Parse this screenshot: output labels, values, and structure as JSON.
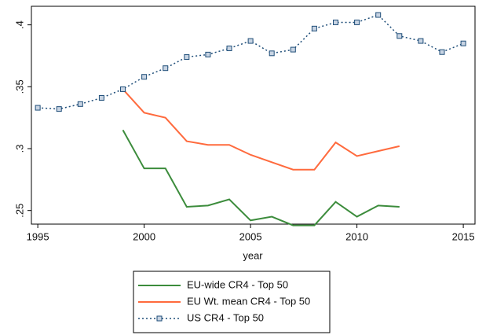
{
  "chart_data": {
    "type": "line",
    "x_label": "year",
    "x": [
      1995,
      1996,
      1997,
      1998,
      1999,
      2000,
      2001,
      2002,
      2003,
      2004,
      2005,
      2006,
      2007,
      2008,
      2009,
      2010,
      2011,
      2012,
      2013,
      2014,
      2015
    ],
    "series": [
      {
        "name": "EU-wide CR4 - Top 50",
        "color": "#3c8c3c",
        "style": "solid",
        "markers": false,
        "values": [
          null,
          null,
          null,
          null,
          0.315,
          0.284,
          0.284,
          0.253,
          0.254,
          0.259,
          0.242,
          0.245,
          0.238,
          0.238,
          0.257,
          0.245,
          0.254,
          0.253,
          null,
          null,
          null
        ]
      },
      {
        "name": "EU Wt. mean  CR4 - Top 50",
        "color": "#ff6a3d",
        "style": "solid",
        "markers": false,
        "values": [
          null,
          null,
          null,
          null,
          0.348,
          0.329,
          0.325,
          0.306,
          0.303,
          0.303,
          0.295,
          0.289,
          0.283,
          0.283,
          0.305,
          0.294,
          0.298,
          0.302,
          null,
          null,
          null
        ]
      },
      {
        "name": "US CR4 - Top 50",
        "color": "#1f4e79",
        "style": "dotted",
        "markers": true,
        "values": [
          0.333,
          0.332,
          0.336,
          0.341,
          0.348,
          0.358,
          0.365,
          0.374,
          0.376,
          0.381,
          0.387,
          0.377,
          0.38,
          0.397,
          0.402,
          0.402,
          0.408,
          0.391,
          0.387,
          0.378,
          0.385
        ]
      }
    ],
    "xlim": [
      1994.7,
      2015.55
    ],
    "xticks": [
      1995,
      2000,
      2005,
      2010,
      2015
    ],
    "ylim": [
      0.239,
      0.415
    ],
    "yticks": [
      {
        "value": 0.25,
        "label": ".25"
      },
      {
        "value": 0.3,
        "label": ".3"
      },
      {
        "value": 0.35,
        "label": ".35"
      },
      {
        "value": 0.4,
        "label": ".4"
      }
    ],
    "grid": false
  }
}
